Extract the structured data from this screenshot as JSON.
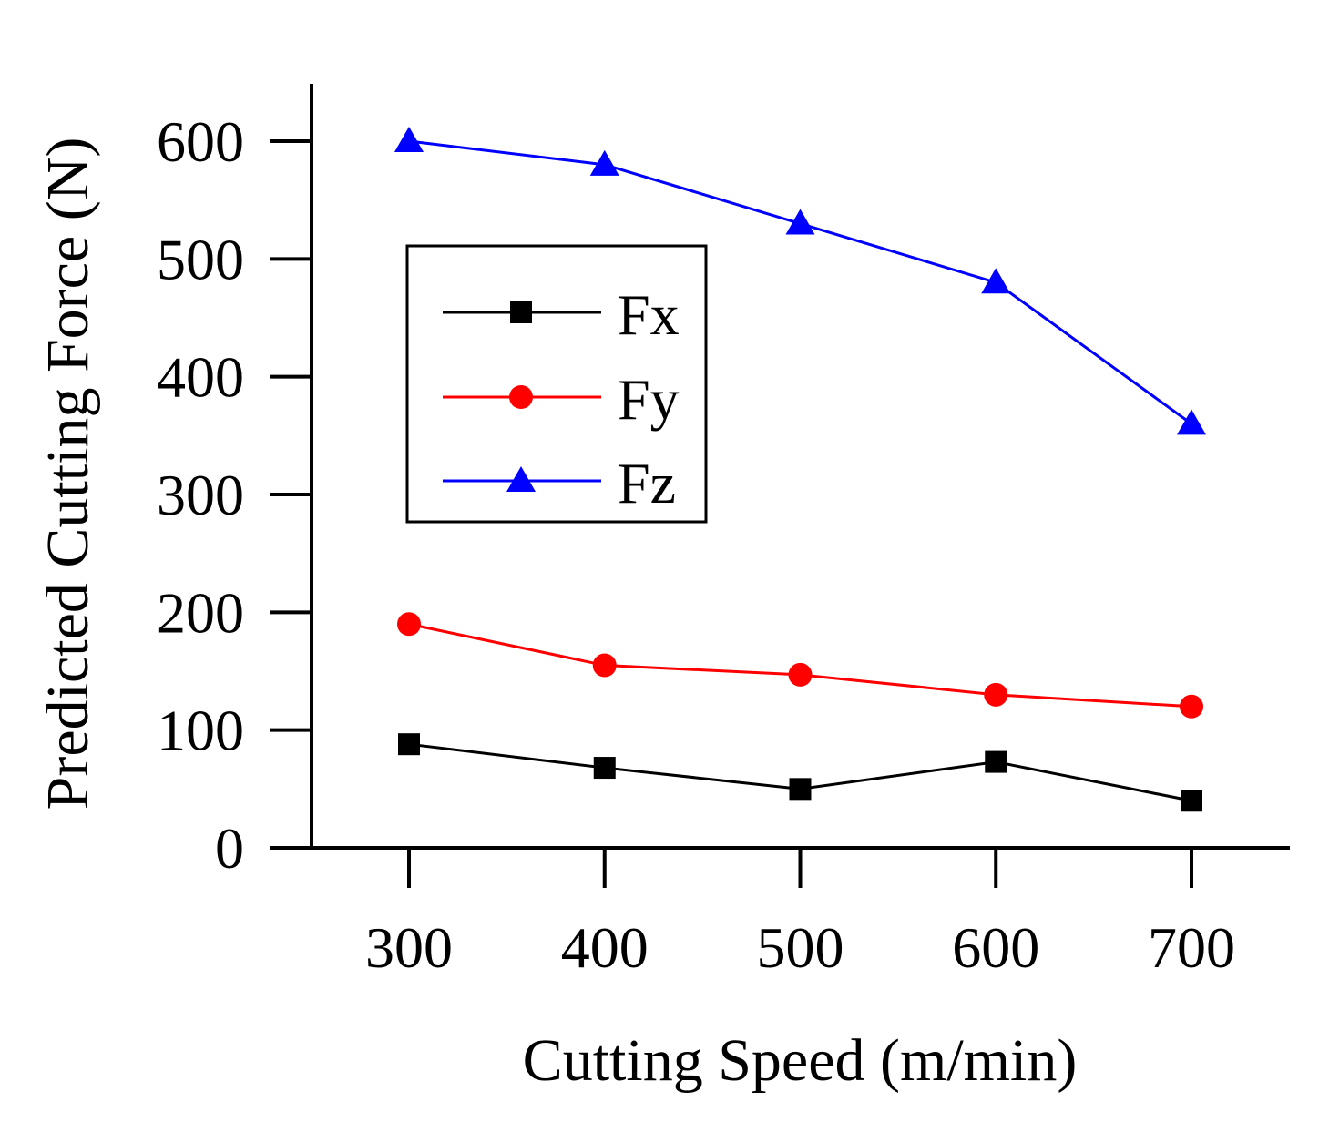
{
  "chart_data": {
    "type": "line",
    "title": "",
    "xlabel": "Cutting Speed (m/min)",
    "ylabel": "Predicted Cutting Force (N)",
    "x": [
      300,
      400,
      500,
      600,
      700
    ],
    "x_tick_labels": [
      "300",
      "400",
      "500",
      "600",
      "700"
    ],
    "y_ticks": [
      0,
      100,
      200,
      300,
      400,
      500,
      600
    ],
    "y_tick_labels": [
      "0",
      "100",
      "200",
      "300",
      "400",
      "500",
      "600"
    ],
    "xlim": [
      250,
      750
    ],
    "ylim": [
      0,
      650
    ],
    "grid": false,
    "legend_position": "upper-left",
    "series": [
      {
        "name": "Fx",
        "color": "#000000",
        "marker": "square",
        "values": [
          88,
          68,
          50,
          73,
          40
        ]
      },
      {
        "name": "Fy",
        "color": "#ff0000",
        "marker": "circle",
        "values": [
          190,
          155,
          147,
          130,
          120
        ]
      },
      {
        "name": "Fz",
        "color": "#0000ff",
        "marker": "triangle",
        "values": [
          600,
          580,
          530,
          480,
          360
        ]
      }
    ]
  }
}
